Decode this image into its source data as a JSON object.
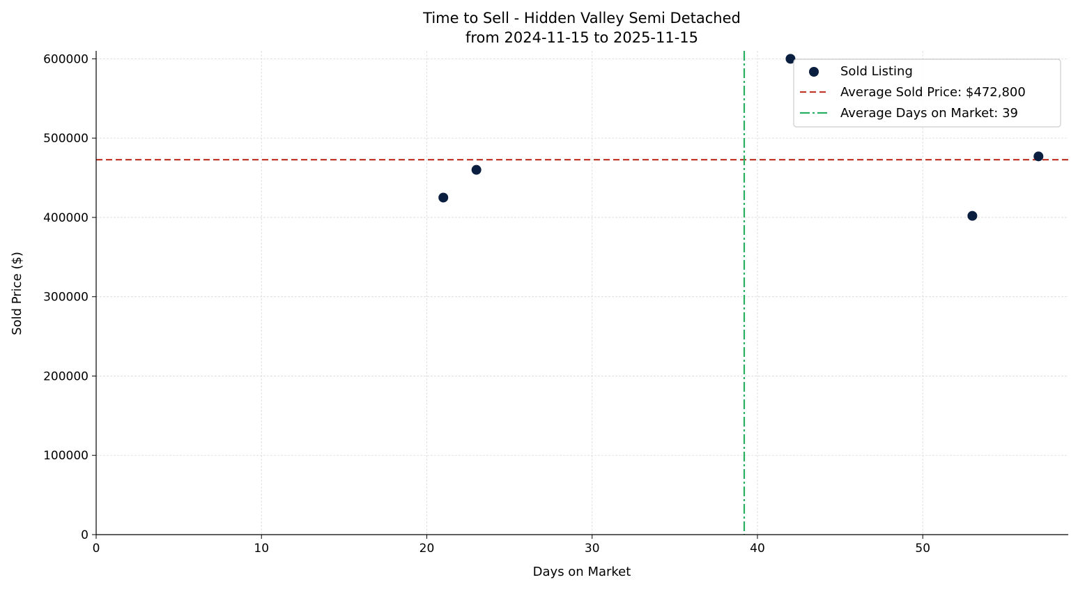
{
  "chart_data": {
    "type": "scatter",
    "title": "Time to Sell - Hidden Valley Semi Detached",
    "subtitle": "from 2024-11-15 to 2025-11-15",
    "xlabel": "Days on Market",
    "ylabel": "Sold Price ($)",
    "xlim": [
      0,
      58.8
    ],
    "ylim": [
      0,
      610000
    ],
    "xticks": [
      0,
      10,
      20,
      30,
      40,
      50
    ],
    "yticks": [
      0,
      100000,
      200000,
      300000,
      400000,
      500000,
      600000
    ],
    "grid": true,
    "legend_position": "top-right",
    "series": [
      {
        "name": "Sold Listing",
        "type": "scatter",
        "color": "#0a1f3f",
        "points": [
          {
            "x": 21,
            "y": 425000
          },
          {
            "x": 23,
            "y": 460000
          },
          {
            "x": 42,
            "y": 600000
          },
          {
            "x": 53,
            "y": 402000
          },
          {
            "x": 57,
            "y": 477000
          }
        ]
      }
    ],
    "reference_lines": [
      {
        "name": "Average Sold Price: $472,800",
        "orientation": "horizontal",
        "value": 472800,
        "style": "dashed",
        "color": "#c0392b"
      },
      {
        "name": "Average Days on Market: 39",
        "orientation": "vertical",
        "value": 39.2,
        "style": "dashdot",
        "color": "#27ae60"
      }
    ]
  }
}
